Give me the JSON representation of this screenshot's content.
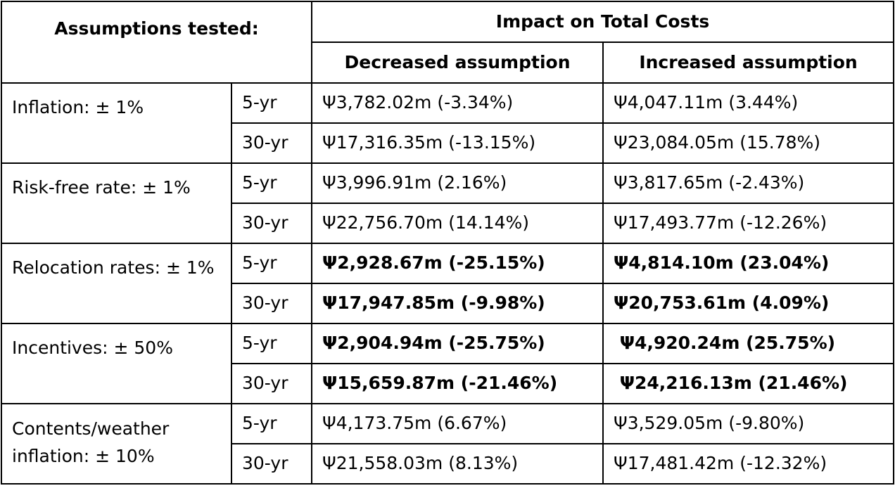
{
  "header": {
    "assumptions": "Assumptions tested:",
    "impact": "Impact on Total Costs",
    "decreased": "Decreased assumption",
    "increased": "Increased assumption"
  },
  "groups": [
    {
      "label": "Inflation: ± 1%",
      "bold": false,
      "rows": [
        {
          "period": "5-yr",
          "decreased": "Ψ3,782.02m (-3.34%)",
          "increased": "Ψ4,047.11m (3.44%)"
        },
        {
          "period": "30-yr",
          "decreased": "Ψ17,316.35m (-13.15%)",
          "increased": "Ψ23,084.05m (15.78%)"
        }
      ]
    },
    {
      "label": "Risk-free rate: ± 1%",
      "bold": false,
      "rows": [
        {
          "period": "5-yr",
          "decreased": "Ψ3,996.91m (2.16%)",
          "increased": "Ψ3,817.65m (-2.43%)"
        },
        {
          "period": "30-yr",
          "decreased": "Ψ22,756.70m (14.14%)",
          "increased": "Ψ17,493.77m (-12.26%)"
        }
      ]
    },
    {
      "label": "Relocation rates: ± 1%",
      "bold": true,
      "rows": [
        {
          "period": "5-yr",
          "decreased": "Ψ2,928.67m (-25.15%)",
          "increased": "Ψ4,814.10m (23.04%)"
        },
        {
          "period": "30-yr",
          "decreased": "Ψ17,947.85m (-9.98%)",
          "increased": "Ψ20,753.61m (4.09%)"
        }
      ]
    },
    {
      "label": "Incentives: ± 50%",
      "bold": true,
      "rows": [
        {
          "period": "5-yr",
          "decreased": "Ψ2,904.94m (-25.75%)",
          "increased": " Ψ4,920.24m (25.75%)"
        },
        {
          "period": "30-yr",
          "decreased": "Ψ15,659.87m (-21.46%)",
          "increased": " Ψ24,216.13m (21.46%)"
        }
      ]
    },
    {
      "label": "Contents/weather inflation: ± 10%",
      "bold": false,
      "rows": [
        {
          "period": "5-yr",
          "decreased": "Ψ4,173.75m (6.67%)",
          "increased": "Ψ3,529.05m (-9.80%)"
        },
        {
          "period": "30-yr",
          "decreased": "Ψ21,558.03m (8.13%)",
          "increased": "Ψ17,481.42m (-12.32%)"
        }
      ]
    }
  ]
}
